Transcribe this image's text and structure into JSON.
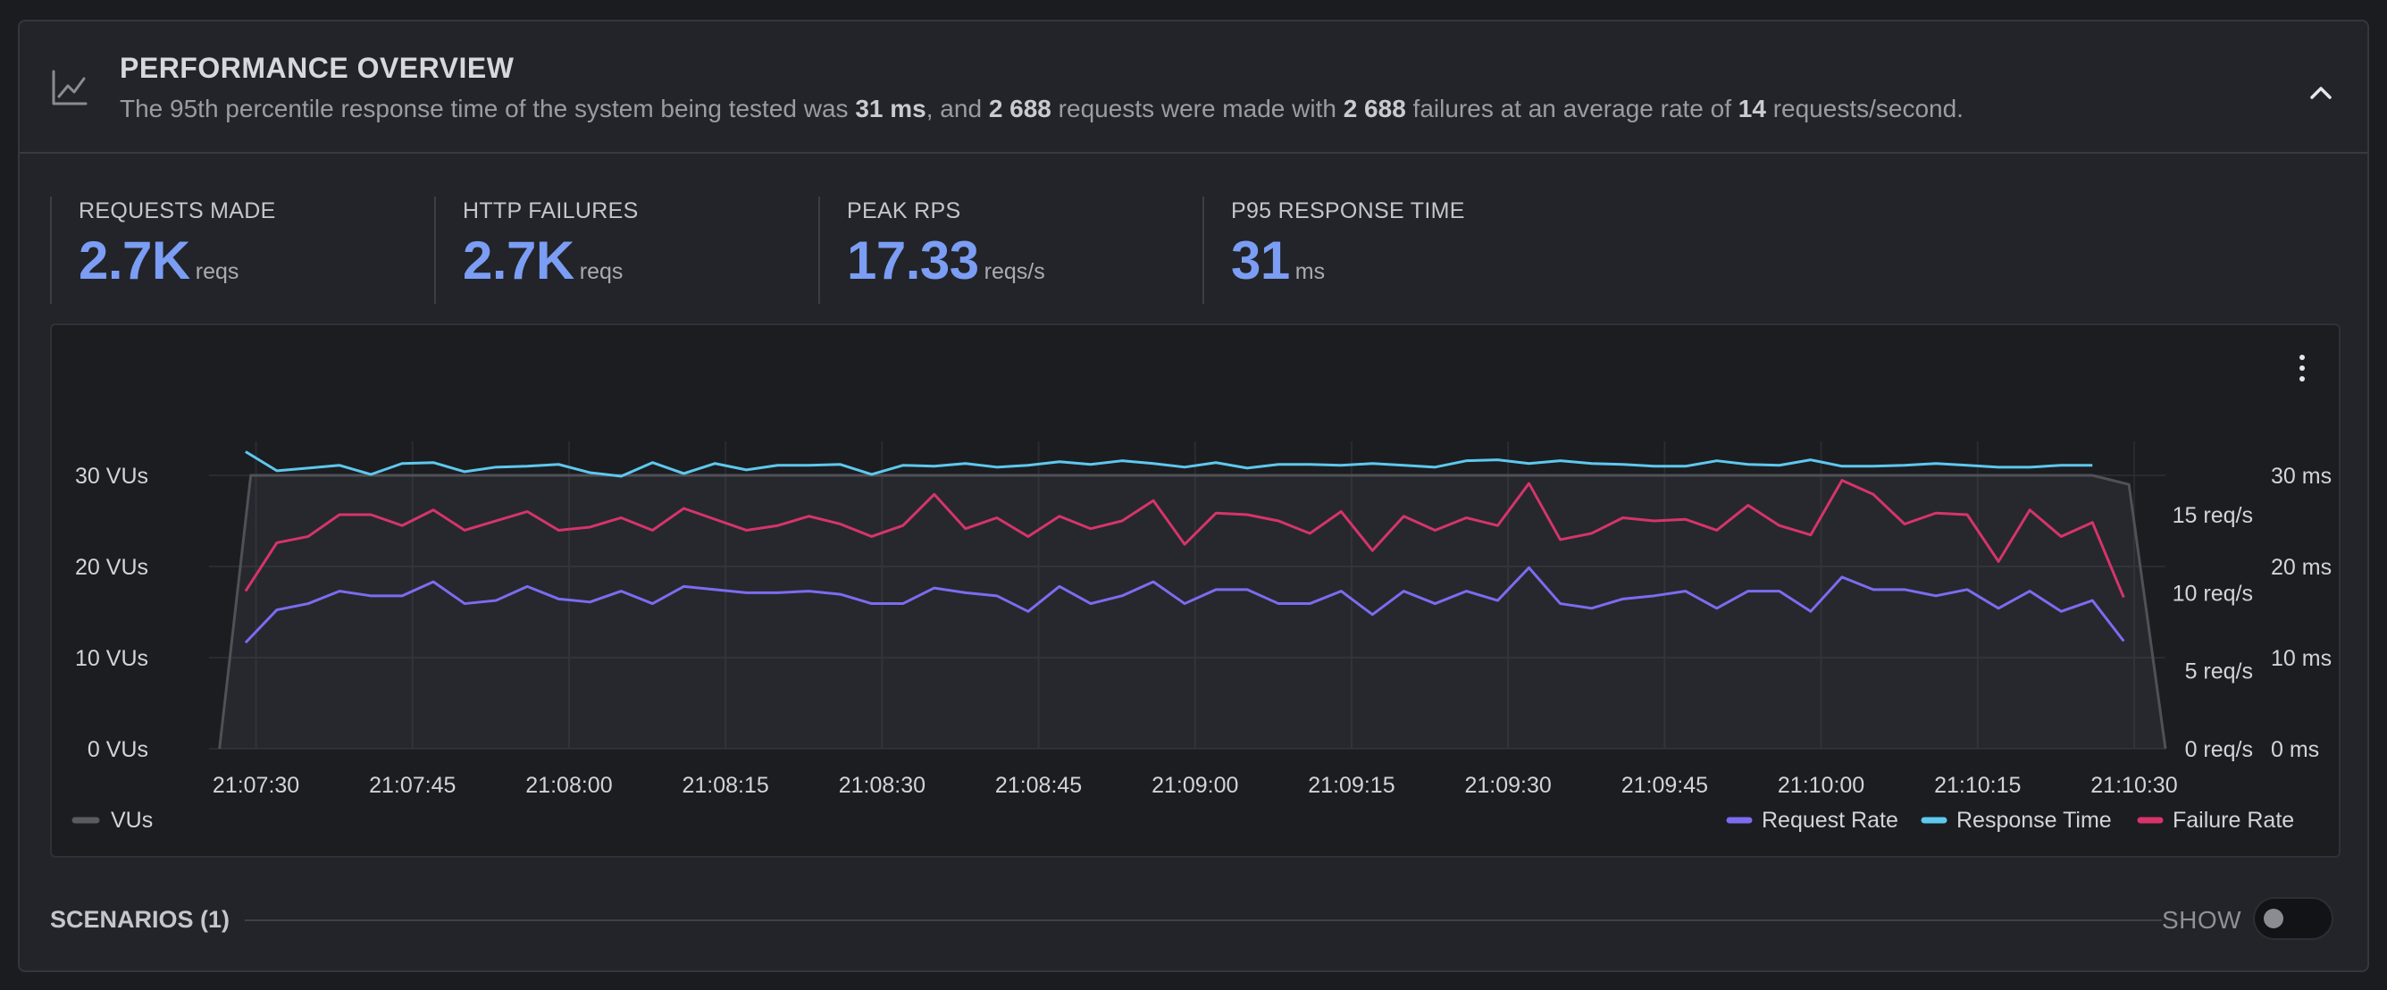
{
  "header": {
    "title": "PERFORMANCE OVERVIEW",
    "desc_parts": [
      {
        "t": "The 95th percentile response time of the system being tested was ",
        "b": false
      },
      {
        "t": "31 ms",
        "b": true
      },
      {
        "t": ", and ",
        "b": false
      },
      {
        "t": "2 688",
        "b": true
      },
      {
        "t": " requests were made with ",
        "b": false
      },
      {
        "t": "2 688",
        "b": true
      },
      {
        "t": " failures at an average rate of ",
        "b": false
      },
      {
        "t": "14",
        "b": true
      },
      {
        "t": " requests/second.",
        "b": false
      }
    ],
    "icon": "line-chart-icon",
    "collapse_icon": "chevron-up-icon"
  },
  "stats": [
    {
      "label": "REQUESTS MADE",
      "value": "2.7K",
      "unit": "reqs"
    },
    {
      "label": "HTTP FAILURES",
      "value": "2.7K",
      "unit": "reqs"
    },
    {
      "label": "PEAK RPS",
      "value": "17.33",
      "unit": "reqs/s"
    },
    {
      "label": "P95 RESPONSE TIME",
      "value": "31",
      "unit": "ms"
    }
  ],
  "scenarios": {
    "label": "SCENARIOS (1)",
    "show_label": "SHOW",
    "toggle_on": false
  },
  "colors": {
    "accent": "#7b9df4",
    "vus": "#4a4b50",
    "request_rate": "#7b6cf0",
    "response_time": "#5ec8ee",
    "failure_rate": "#d6346a"
  },
  "chart_data": {
    "type": "line",
    "x_ticks": [
      "21:07:30",
      "21:07:45",
      "21:08:00",
      "21:08:15",
      "21:08:30",
      "21:08:45",
      "21:09:00",
      "21:09:15",
      "21:09:30",
      "21:09:45",
      "21:10:00",
      "21:10:15",
      "21:10:30"
    ],
    "x_start_sec": 25.5,
    "x_end_sec": 213,
    "y_left": {
      "ticks": [
        "0 VUs",
        "10 VUs",
        "20 VUs",
        "30 VUs"
      ],
      "range": [
        0,
        30
      ]
    },
    "y_right_rps": {
      "ticks": [
        "0 req/s",
        "5 req/s",
        "10 req/s",
        "15 req/s"
      ],
      "range": [
        0,
        15
      ]
    },
    "y_right_ms": {
      "ticks": [
        "0 ms",
        "10 ms",
        "20 ms",
        "30 ms"
      ],
      "range": [
        0,
        30
      ]
    },
    "legend_left": [
      {
        "name": "VUs"
      }
    ],
    "legend_right": [
      {
        "name": "Request Rate"
      },
      {
        "name": "Response Time"
      },
      {
        "name": "Failure Rate"
      }
    ],
    "series": [
      {
        "name": "VUs",
        "axis": "left",
        "area": true,
        "x": [
          26.5,
          29.5,
          206,
          209.5,
          213
        ],
        "values": [
          0,
          30,
          30,
          29,
          0
        ]
      },
      {
        "name": "Request Rate",
        "axis": "rps",
        "x0": 29,
        "dx": 3,
        "values": [
          6.8,
          8.9,
          9.3,
          10.1,
          9.8,
          9.8,
          10.7,
          9.3,
          9.5,
          10.4,
          9.6,
          9.4,
          10.1,
          9.3,
          10.4,
          10.2,
          10.0,
          10.0,
          10.1,
          9.9,
          9.3,
          9.3,
          10.3,
          10.0,
          9.8,
          8.8,
          10.4,
          9.3,
          9.8,
          10.7,
          9.3,
          10.2,
          10.2,
          9.3,
          9.3,
          10.1,
          8.6,
          10.1,
          9.3,
          10.1,
          9.5,
          11.6,
          9.3,
          9.0,
          9.6,
          9.8,
          10.1,
          9.0,
          10.1,
          10.1,
          8.8,
          11.0,
          10.2,
          10.2,
          9.8,
          10.2,
          9.0,
          10.1,
          8.8,
          9.5,
          6.9
        ]
      },
      {
        "name": "Response Time",
        "axis": "ms",
        "x0": 29,
        "dx": 3,
        "values": [
          32.6,
          30.5,
          30.8,
          31.1,
          30.1,
          31.3,
          31.4,
          30.4,
          30.9,
          31.0,
          31.2,
          30.3,
          29.9,
          31.4,
          30.2,
          31.3,
          30.6,
          31.1,
          31.1,
          31.2,
          30.1,
          31.1,
          31.0,
          31.3,
          30.9,
          31.1,
          31.5,
          31.2,
          31.6,
          31.3,
          30.9,
          31.4,
          30.8,
          31.2,
          31.2,
          31.1,
          31.3,
          31.1,
          30.9,
          31.6,
          31.7,
          31.3,
          31.6,
          31.3,
          31.2,
          31.0,
          31.0,
          31.6,
          31.2,
          31.1,
          31.7,
          31.0,
          31.0,
          31.1,
          31.3,
          31.1,
          30.9,
          30.9,
          31.1,
          31.1
        ]
      },
      {
        "name": "Failure Rate",
        "axis": "rps",
        "x0": 29,
        "dx": 3,
        "values": [
          10.1,
          13.2,
          13.6,
          15.0,
          15.0,
          14.3,
          15.3,
          14.0,
          14.6,
          15.2,
          14.0,
          14.2,
          14.8,
          14.0,
          15.4,
          14.7,
          14.0,
          14.3,
          14.9,
          14.4,
          13.6,
          14.3,
          16.3,
          14.1,
          14.8,
          13.6,
          14.9,
          14.1,
          14.6,
          15.9,
          13.1,
          15.1,
          15.0,
          14.6,
          13.8,
          15.2,
          12.7,
          14.9,
          14.0,
          14.8,
          14.3,
          17.0,
          13.4,
          13.8,
          14.8,
          14.6,
          14.7,
          14.0,
          15.6,
          14.3,
          13.7,
          17.2,
          16.3,
          14.4,
          15.1,
          15.0,
          12.0,
          15.3,
          13.6,
          14.5,
          9.7
        ]
      }
    ]
  }
}
